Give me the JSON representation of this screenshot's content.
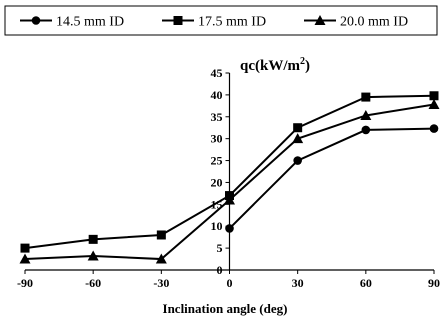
{
  "chart_data": {
    "type": "line",
    "title": "",
    "xlabel": "Inclination angle (deg)",
    "ylabel": "qc(kW/m",
    "ylabel_sup": "2",
    "ylabel_close": ")",
    "x": [
      -90,
      -60,
      -30,
      0,
      30,
      60,
      90
    ],
    "xlim": [
      -90,
      90
    ],
    "ylim": [
      0,
      45
    ],
    "x_ticks": [
      -90,
      -60,
      -30,
      0,
      30,
      60,
      90
    ],
    "y_ticks": [
      0,
      5,
      10,
      15,
      20,
      25,
      30,
      35,
      40,
      45
    ],
    "grid": false,
    "legend_position": "top",
    "series": [
      {
        "name": "14.5 mm ID",
        "marker": "circle",
        "points": [
          [
            0,
            9.5
          ],
          [
            30,
            25.0
          ],
          [
            60,
            32.0
          ],
          [
            90,
            32.3
          ]
        ]
      },
      {
        "name": "17.5 mm ID",
        "marker": "square",
        "points": [
          [
            -90,
            5.0
          ],
          [
            -60,
            7.0
          ],
          [
            -30,
            8.0
          ],
          [
            0,
            17.0
          ],
          [
            30,
            32.5
          ],
          [
            60,
            39.5
          ],
          [
            90,
            39.8
          ]
        ]
      },
      {
        "name": "20.0 mm ID",
        "marker": "triangle",
        "points": [
          [
            -90,
            2.5
          ],
          [
            -60,
            3.2
          ],
          [
            -30,
            2.5
          ],
          [
            0,
            16.0
          ],
          [
            30,
            30.0
          ],
          [
            60,
            35.3
          ],
          [
            90,
            37.8
          ]
        ]
      }
    ]
  },
  "colors": {
    "line": "#000000",
    "axis": "#000000",
    "background": "#ffffff"
  }
}
